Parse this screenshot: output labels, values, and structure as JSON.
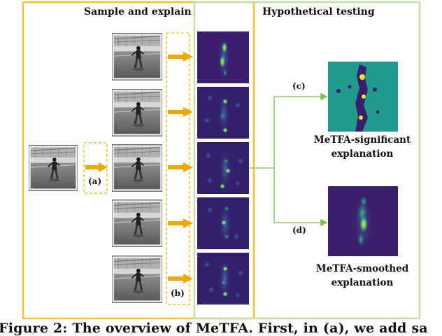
{
  "sections": {
    "left_title": "Sample and explain",
    "right_title": "Hypothetical testing"
  },
  "steps": {
    "a": "(a)",
    "b": "(b)",
    "c": "(c)",
    "d": "(d)"
  },
  "outputs": {
    "significant_line1": "MeTFA-significant",
    "significant_line2": "explanation",
    "smoothed_line1": "MeTFA-smoothed",
    "smoothed_line2": "explanation"
  },
  "caption": "Figure 2: The overview of MeTFA. First, in (a), we add sa",
  "colors": {
    "left_frame": "#f1c232",
    "right_frame": "#c5e0a5",
    "arrow_orange": "#f0a800",
    "arrow_green": "#7dc24b",
    "heatmap_bg": "#3b1d6e",
    "significant_bg": "#1f9b8c"
  }
}
